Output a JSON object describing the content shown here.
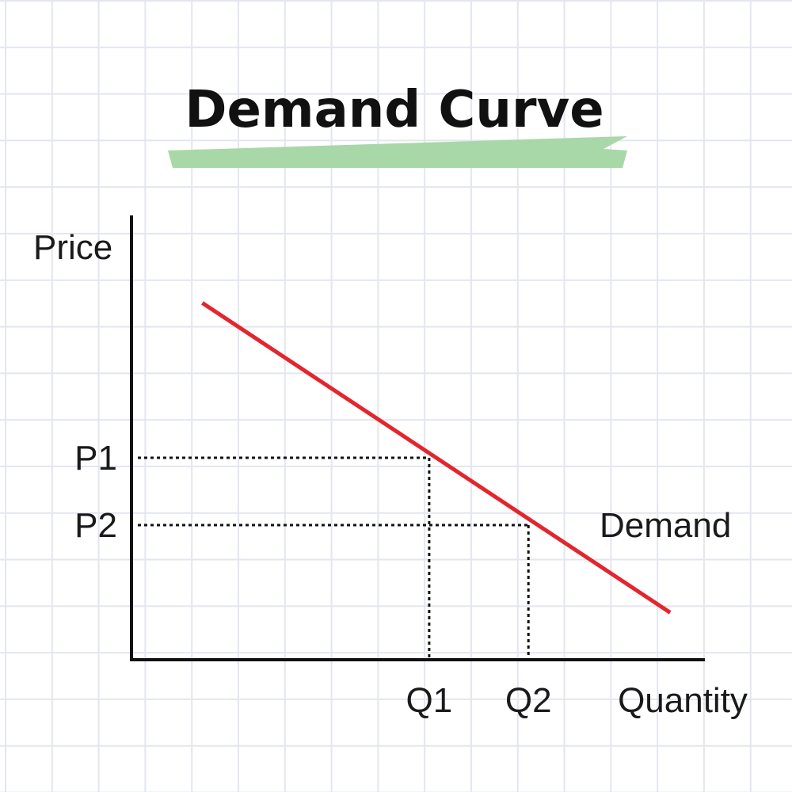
{
  "chart_data": {
    "type": "line",
    "title": "Demand Curve",
    "xlabel": "Quantity",
    "ylabel": "Price",
    "grid": true,
    "series": [
      {
        "name": "Demand",
        "x": [
          1.0,
          7.6
        ],
        "y": [
          5.3,
          0.7
        ]
      }
    ],
    "xlim": [
      0,
      8
    ],
    "ylim": [
      0,
      6
    ],
    "reference_points": [
      {
        "x_label": "Q1",
        "y_label": "P1",
        "x": 4.2,
        "y": 3.0
      },
      {
        "x_label": "Q2",
        "y_label": "P2",
        "x": 5.6,
        "y": 2.0
      }
    ],
    "colors": {
      "demand_line": "#e3262e",
      "title_underline": "#a8d8a8",
      "axis": "#111111"
    }
  }
}
